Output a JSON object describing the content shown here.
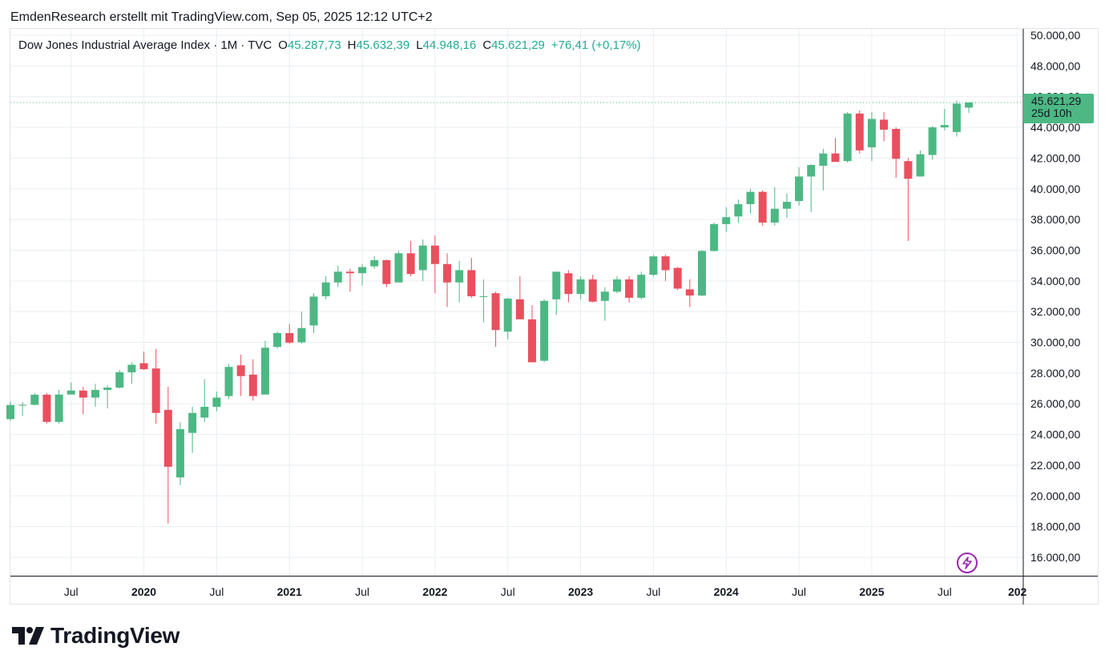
{
  "header": {
    "title": "EmdenResearch erstellt mit TradingView.com, Sep 05, 2025 12:12 UTC+2"
  },
  "legend": {
    "symbol": "Dow Jones Industrial Average Index · 1M · TVC",
    "o_label": "O",
    "o_value": "45.287,73",
    "h_label": "H",
    "h_value": "45.632,39",
    "l_label": "L",
    "l_value": "44.948,16",
    "c_label": "C",
    "c_value": "45.621,29",
    "change": "+76,41 (+0,17%)"
  },
  "price_tag": {
    "price": "45.621,29",
    "countdown": "25d 10h"
  },
  "brand": {
    "name": "TradingView",
    "icon": "tradingview-logo-icon"
  },
  "buttons": {
    "snapshot_icon": "lightning-icon"
  },
  "colors": {
    "up": "#4db884",
    "down": "#ea4f5e",
    "grid": "#e9eef3",
    "accent": "#9c27b0",
    "text": "#131722"
  },
  "chart_data": {
    "type": "candlestick",
    "interval": "1M",
    "title": "Dow Jones Industrial Average Index · 1M · TVC",
    "ylim": [
      14000,
      50500
    ],
    "y_ticks": [
      16000,
      18000,
      20000,
      22000,
      24000,
      26000,
      28000,
      30000,
      32000,
      34000,
      36000,
      38000,
      40000,
      42000,
      44000,
      46000,
      48000,
      50000
    ],
    "y_tick_labels": [
      "16.000,00",
      "18.000,00",
      "20.000,00",
      "22.000,00",
      "24.000,00",
      "26.000,00",
      "28.000,00",
      "30.000,00",
      "32.000,00",
      "34.000,00",
      "36.000,00",
      "38.000,00",
      "40.000,00",
      "42.000,00",
      "44.000,00",
      "46.000,00",
      "48.000,00",
      "50.000,00"
    ],
    "x_ticks": [
      {
        "label": "Jul",
        "month": "2019-07",
        "bold": false
      },
      {
        "label": "2020",
        "month": "2020-01",
        "bold": true
      },
      {
        "label": "Jul",
        "month": "2020-07",
        "bold": false
      },
      {
        "label": "2021",
        "month": "2021-01",
        "bold": true
      },
      {
        "label": "Jul",
        "month": "2021-07",
        "bold": false
      },
      {
        "label": "2022",
        "month": "2022-01",
        "bold": true
      },
      {
        "label": "Jul",
        "month": "2022-07",
        "bold": false
      },
      {
        "label": "2023",
        "month": "2023-01",
        "bold": true
      },
      {
        "label": "Jul",
        "month": "2023-07",
        "bold": false
      },
      {
        "label": "2024",
        "month": "2024-01",
        "bold": true
      },
      {
        "label": "Jul",
        "month": "2024-07",
        "bold": false
      },
      {
        "label": "2025",
        "month": "2025-01",
        "bold": true
      },
      {
        "label": "Jul",
        "month": "2025-07",
        "bold": false
      },
      {
        "label": "202",
        "month": "2026-01",
        "bold": true
      }
    ],
    "last_price": 45621.29,
    "candles": [
      {
        "month": "2019-02",
        "o": 25000,
        "h": 26150,
        "l": 24900,
        "c": 25920
      },
      {
        "month": "2019-03",
        "o": 25920,
        "h": 26100,
        "l": 25200,
        "c": 25930
      },
      {
        "month": "2019-04",
        "o": 25930,
        "h": 26700,
        "l": 25900,
        "c": 26590
      },
      {
        "month": "2019-05",
        "o": 26590,
        "h": 26700,
        "l": 24700,
        "c": 24820
      },
      {
        "month": "2019-06",
        "o": 24820,
        "h": 26900,
        "l": 24700,
        "c": 26600
      },
      {
        "month": "2019-07",
        "o": 26600,
        "h": 27400,
        "l": 26700,
        "c": 26860
      },
      {
        "month": "2019-08",
        "o": 26860,
        "h": 27100,
        "l": 25300,
        "c": 26400
      },
      {
        "month": "2019-09",
        "o": 26400,
        "h": 27300,
        "l": 25800,
        "c": 26900
      },
      {
        "month": "2019-10",
        "o": 26900,
        "h": 27200,
        "l": 25700,
        "c": 27050
      },
      {
        "month": "2019-11",
        "o": 27050,
        "h": 28200,
        "l": 27000,
        "c": 28050
      },
      {
        "month": "2019-12",
        "o": 28050,
        "h": 28700,
        "l": 27300,
        "c": 28540
      },
      {
        "month": "2020-01",
        "o": 28640,
        "h": 29400,
        "l": 28200,
        "c": 28250
      },
      {
        "month": "2020-02",
        "o": 28300,
        "h": 29570,
        "l": 24700,
        "c": 25400
      },
      {
        "month": "2020-03",
        "o": 25600,
        "h": 27100,
        "l": 18200,
        "c": 21900
      },
      {
        "month": "2020-04",
        "o": 21200,
        "h": 24800,
        "l": 20700,
        "c": 24350
      },
      {
        "month": "2020-05",
        "o": 24100,
        "h": 25800,
        "l": 22800,
        "c": 25400
      },
      {
        "month": "2020-06",
        "o": 25100,
        "h": 27600,
        "l": 24800,
        "c": 25800
      },
      {
        "month": "2020-07",
        "o": 25800,
        "h": 26800,
        "l": 25500,
        "c": 26400
      },
      {
        "month": "2020-08",
        "o": 26500,
        "h": 28600,
        "l": 26300,
        "c": 28400
      },
      {
        "month": "2020-09",
        "o": 28500,
        "h": 29200,
        "l": 26500,
        "c": 27800
      },
      {
        "month": "2020-10",
        "o": 27900,
        "h": 28900,
        "l": 26200,
        "c": 26500
      },
      {
        "month": "2020-11",
        "o": 26600,
        "h": 30100,
        "l": 26700,
        "c": 29650
      },
      {
        "month": "2020-12",
        "o": 29700,
        "h": 30700,
        "l": 29600,
        "c": 30600
      },
      {
        "month": "2021-01",
        "o": 30600,
        "h": 31200,
        "l": 29900,
        "c": 29980
      },
      {
        "month": "2021-02",
        "o": 30000,
        "h": 32000,
        "l": 29900,
        "c": 30930
      },
      {
        "month": "2021-03",
        "o": 31100,
        "h": 33200,
        "l": 30600,
        "c": 32980
      },
      {
        "month": "2021-04",
        "o": 33000,
        "h": 34300,
        "l": 32800,
        "c": 33900
      },
      {
        "month": "2021-05",
        "o": 33900,
        "h": 35000,
        "l": 33600,
        "c": 34600
      },
      {
        "month": "2021-06",
        "o": 34600,
        "h": 34800,
        "l": 33300,
        "c": 34500
      },
      {
        "month": "2021-07",
        "o": 34500,
        "h": 35100,
        "l": 33700,
        "c": 34900
      },
      {
        "month": "2021-08",
        "o": 34950,
        "h": 35600,
        "l": 34800,
        "c": 35350
      },
      {
        "month": "2021-09",
        "o": 35350,
        "h": 35400,
        "l": 33600,
        "c": 33800
      },
      {
        "month": "2021-10",
        "o": 33900,
        "h": 35950,
        "l": 33900,
        "c": 35800
      },
      {
        "month": "2021-11",
        "o": 35800,
        "h": 36600,
        "l": 34300,
        "c": 34450
      },
      {
        "month": "2021-12",
        "o": 34700,
        "h": 36700,
        "l": 34000,
        "c": 36300
      },
      {
        "month": "2022-01",
        "o": 36300,
        "h": 36950,
        "l": 33200,
        "c": 35100
      },
      {
        "month": "2022-02",
        "o": 35100,
        "h": 35800,
        "l": 32300,
        "c": 33900
      },
      {
        "month": "2022-03",
        "o": 33900,
        "h": 35300,
        "l": 32600,
        "c": 34700
      },
      {
        "month": "2022-04",
        "o": 34700,
        "h": 35500,
        "l": 32900,
        "c": 33000
      },
      {
        "month": "2022-05",
        "o": 33000,
        "h": 34100,
        "l": 31300,
        "c": 33000
      },
      {
        "month": "2022-06",
        "o": 33200,
        "h": 33300,
        "l": 29700,
        "c": 30800
      },
      {
        "month": "2022-07",
        "o": 30700,
        "h": 32900,
        "l": 30200,
        "c": 32850
      },
      {
        "month": "2022-08",
        "o": 32800,
        "h": 34300,
        "l": 31500,
        "c": 31500
      },
      {
        "month": "2022-09",
        "o": 31500,
        "h": 32400,
        "l": 28700,
        "c": 28700
      },
      {
        "month": "2022-10",
        "o": 28800,
        "h": 32800,
        "l": 28700,
        "c": 32700
      },
      {
        "month": "2022-11",
        "o": 32800,
        "h": 34600,
        "l": 31800,
        "c": 34600
      },
      {
        "month": "2022-12",
        "o": 34500,
        "h": 34700,
        "l": 32600,
        "c": 33150
      },
      {
        "month": "2023-01",
        "o": 33150,
        "h": 34300,
        "l": 32800,
        "c": 34100
      },
      {
        "month": "2023-02",
        "o": 34100,
        "h": 34400,
        "l": 32600,
        "c": 32650
      },
      {
        "month": "2023-03",
        "o": 32700,
        "h": 33600,
        "l": 31400,
        "c": 33300
      },
      {
        "month": "2023-04",
        "o": 33300,
        "h": 34300,
        "l": 33200,
        "c": 34100
      },
      {
        "month": "2023-05",
        "o": 34100,
        "h": 34300,
        "l": 32600,
        "c": 32900
      },
      {
        "month": "2023-06",
        "o": 32900,
        "h": 34600,
        "l": 32800,
        "c": 34400
      },
      {
        "month": "2023-07",
        "o": 34400,
        "h": 35700,
        "l": 34300,
        "c": 35600
      },
      {
        "month": "2023-08",
        "o": 35600,
        "h": 35700,
        "l": 34000,
        "c": 34700
      },
      {
        "month": "2023-09",
        "o": 34850,
        "h": 34900,
        "l": 33400,
        "c": 33500
      },
      {
        "month": "2023-10",
        "o": 33450,
        "h": 34100,
        "l": 32300,
        "c": 33050
      },
      {
        "month": "2023-11",
        "o": 33050,
        "h": 36000,
        "l": 33000,
        "c": 35950
      },
      {
        "month": "2023-12",
        "o": 35950,
        "h": 37800,
        "l": 35900,
        "c": 37700
      },
      {
        "month": "2024-01",
        "o": 37700,
        "h": 38800,
        "l": 37200,
        "c": 38150
      },
      {
        "month": "2024-02",
        "o": 38200,
        "h": 39300,
        "l": 37800,
        "c": 39000
      },
      {
        "month": "2024-03",
        "o": 39000,
        "h": 40000,
        "l": 38400,
        "c": 39800
      },
      {
        "month": "2024-04",
        "o": 39800,
        "h": 39900,
        "l": 37600,
        "c": 37800
      },
      {
        "month": "2024-05",
        "o": 37800,
        "h": 40100,
        "l": 37600,
        "c": 38700
      },
      {
        "month": "2024-06",
        "o": 38700,
        "h": 39700,
        "l": 38100,
        "c": 39150
      },
      {
        "month": "2024-07",
        "o": 39200,
        "h": 41400,
        "l": 38900,
        "c": 40800
      },
      {
        "month": "2024-08",
        "o": 40800,
        "h": 41600,
        "l": 38500,
        "c": 41550
      },
      {
        "month": "2024-09",
        "o": 41500,
        "h": 42600,
        "l": 39900,
        "c": 42300
      },
      {
        "month": "2024-10",
        "o": 42300,
        "h": 43300,
        "l": 41900,
        "c": 41750
      },
      {
        "month": "2024-11",
        "o": 41800,
        "h": 45000,
        "l": 41700,
        "c": 44900
      },
      {
        "month": "2024-12",
        "o": 44900,
        "h": 45100,
        "l": 42300,
        "c": 42500
      },
      {
        "month": "2025-01",
        "o": 42700,
        "h": 45000,
        "l": 41800,
        "c": 44550
      },
      {
        "month": "2025-02",
        "o": 44500,
        "h": 45000,
        "l": 43100,
        "c": 43850
      },
      {
        "month": "2025-03",
        "o": 43900,
        "h": 44000,
        "l": 40700,
        "c": 41950
      },
      {
        "month": "2025-04",
        "o": 41800,
        "h": 42000,
        "l": 36600,
        "c": 40650
      },
      {
        "month": "2025-05",
        "o": 40800,
        "h": 42500,
        "l": 40800,
        "c": 42250
      },
      {
        "month": "2025-06",
        "o": 42200,
        "h": 44100,
        "l": 41900,
        "c": 44000
      },
      {
        "month": "2025-07",
        "o": 44000,
        "h": 45200,
        "l": 43800,
        "c": 44150
      },
      {
        "month": "2025-08",
        "o": 43700,
        "h": 45750,
        "l": 43400,
        "c": 45550
      },
      {
        "month": "2025-09",
        "o": 45287.73,
        "h": 45632.39,
        "l": 44948.16,
        "c": 45621.29
      }
    ]
  }
}
